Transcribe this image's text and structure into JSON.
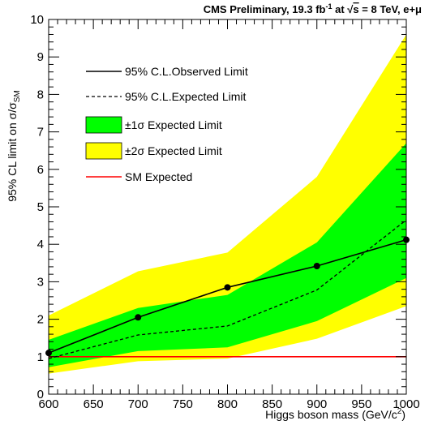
{
  "chart_data": {
    "type": "line",
    "title": {
      "main": "CMS Preliminary, 19.3 fb",
      "sup": "-1",
      "mid": " at ",
      "sqrt": "s",
      "tail": " = 8 TeV, e+μ"
    },
    "xlabel": {
      "text": "Higgs boson mass (GeV/c",
      "sup": "2",
      "tail": ")"
    },
    "ylabel": {
      "text": "95% CL limit on σ/σ",
      "sub": "SM"
    },
    "xlim": [
      600,
      1000
    ],
    "ylim": [
      0,
      10
    ],
    "x_ticks": [
      "600",
      "650",
      "700",
      "750",
      "800",
      "850",
      "900",
      "950",
      "1000"
    ],
    "y_ticks": [
      "0",
      "1",
      "2",
      "3",
      "4",
      "5",
      "6",
      "7",
      "8",
      "9",
      "10"
    ],
    "x": [
      600,
      700,
      800,
      900,
      1000
    ],
    "series": [
      {
        "name": "95% C.L.Observed Limit",
        "values": [
          1.1,
          2.05,
          2.85,
          3.42,
          4.12
        ],
        "style": "solid-with-markers",
        "color": "#000000"
      },
      {
        "name": "95% C.L.Expected Limit",
        "values": [
          0.95,
          1.58,
          1.82,
          2.78,
          4.65
        ],
        "style": "dashed",
        "color": "#000000"
      },
      {
        "name": "±1σ Expected Limit",
        "band_low": [
          0.72,
          1.15,
          1.25,
          1.95,
          3.1
        ],
        "band_high": [
          1.45,
          2.3,
          2.65,
          4.05,
          6.7
        ],
        "style": "band",
        "color": "#00ff00"
      },
      {
        "name": "±2σ Expected Limit",
        "band_low": [
          0.55,
          0.88,
          0.95,
          1.48,
          2.35
        ],
        "band_high": [
          2.1,
          3.28,
          3.78,
          5.8,
          9.6
        ],
        "style": "band",
        "color": "#ffff00"
      },
      {
        "name": "SM Expected",
        "values": [
          1,
          1,
          1,
          1,
          1
        ],
        "style": "solid",
        "color": "#ff0000"
      }
    ],
    "legend": {
      "placement": "top-left",
      "entries": [
        {
          "label": "95% C.L.Observed Limit",
          "kind": "solid"
        },
        {
          "label": "95% C.L.Expected Limit",
          "kind": "dashed"
        },
        {
          "label": "±1σ Expected Limit",
          "kind": "band1"
        },
        {
          "label": "±2σ Expected Limit",
          "kind": "band2"
        },
        {
          "label": "SM Expected",
          "kind": "red"
        }
      ]
    },
    "grid": false
  }
}
